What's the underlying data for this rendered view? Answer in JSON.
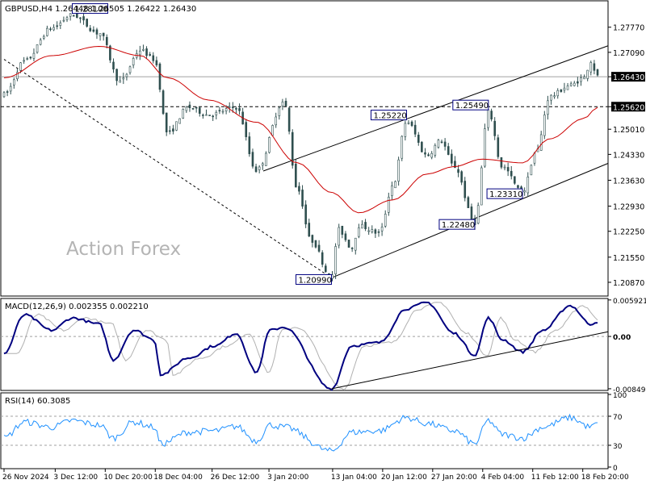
{
  "colors": {
    "background": "#ffffff",
    "frame": "#000000",
    "candle": "#2f4f4f",
    "sma": "#cc0000",
    "macd": "#000080",
    "signal": "#b0b0b0",
    "rsi": "#1e90ff",
    "level": "#a0a0a0",
    "watermark": "#b4b4b4"
  },
  "header": {
    "symbol_text": "GBPUSD,H4  1.26448  1.26505  1.26422  1.26430",
    "watermark": "Action Forex"
  },
  "chart_data": [
    {
      "type": "candlestick",
      "title": "GBPUSD,H4  1.26448  1.26505  1.26422  1.26430",
      "y_ticks": [
        "1.27770",
        "1.27090",
        "1.26430",
        "1.25620",
        "1.25010",
        "1.24330",
        "1.23630",
        "1.22930",
        "1.22250",
        "1.21550",
        "1.20870"
      ],
      "ylim": [
        1.2052,
        1.2844
      ],
      "x_ticks": [
        "26 Nov 2024",
        "3 Dec 12:00",
        "10 Dec 20:00",
        "18 Dec 04:00",
        "26 Dec 12:00",
        "3 Jan 20:00",
        "13 Jan 04:00",
        "20 Jan 12:00",
        "27 Jan 20:00",
        "4 Feb 04:00",
        "11 Feb 12:00",
        "18 Feb 20:00"
      ],
      "current_price": "1.26430",
      "horizontal_level": "1.25620",
      "annotations": [
        "1.28100",
        "1.20990",
        "1.25220",
        "1.25490",
        "1.22480",
        "1.23310"
      ],
      "swing_points": [
        {
          "date": "26 Nov 2024",
          "price": 1.2595
        },
        {
          "date": "29 Nov",
          "price": 1.2685
        },
        {
          "date": "3 Dec",
          "price": 1.2775
        },
        {
          "date": "6 Dec",
          "price": 1.281
        },
        {
          "date": "10 Dec",
          "price": 1.276
        },
        {
          "date": "13 Dec",
          "price": 1.263
        },
        {
          "date": "16 Dec",
          "price": 1.2715
        },
        {
          "date": "18 Dec",
          "price": 1.269
        },
        {
          "date": "20 Dec",
          "price": 1.249
        },
        {
          "date": "23 Dec",
          "price": 1.256
        },
        {
          "date": "26 Dec",
          "price": 1.254
        },
        {
          "date": "30 Dec",
          "price": 1.256
        },
        {
          "date": "2 Jan",
          "price": 1.239
        },
        {
          "date": "6 Jan",
          "price": 1.2575
        },
        {
          "date": "8 Jan",
          "price": 1.234
        },
        {
          "date": "10 Jan",
          "price": 1.22
        },
        {
          "date": "13 Jan",
          "price": 1.2099
        },
        {
          "date": "14 Jan",
          "price": 1.223
        },
        {
          "date": "16 Jan",
          "price": 1.218
        },
        {
          "date": "17 Jan",
          "price": 1.224
        },
        {
          "date": "20 Jan",
          "price": 1.222
        },
        {
          "date": "22 Jan",
          "price": 1.235
        },
        {
          "date": "24 Jan",
          "price": 1.2522
        },
        {
          "date": "27 Jan",
          "price": 1.243
        },
        {
          "date": "29 Jan",
          "price": 1.247
        },
        {
          "date": "31 Jan",
          "price": 1.24
        },
        {
          "date": "3 Feb",
          "price": 1.2248
        },
        {
          "date": "5 Feb",
          "price": 1.2549
        },
        {
          "date": "7 Feb",
          "price": 1.24
        },
        {
          "date": "10 Feb",
          "price": 1.2331
        },
        {
          "date": "12 Feb",
          "price": 1.244
        },
        {
          "date": "14 Feb",
          "price": 1.259
        },
        {
          "date": "17 Feb",
          "price": 1.262
        },
        {
          "date": "19 Feb",
          "price": 1.264
        },
        {
          "date": "20 Feb",
          "price": 1.2685
        },
        {
          "date": "21 Feb",
          "price": 1.2643
        }
      ],
      "sma_points": [
        {
          "date": "26 Nov 2024",
          "price": 1.264
        },
        {
          "date": "3 Dec",
          "price": 1.27
        },
        {
          "date": "10 Dec",
          "price": 1.2725
        },
        {
          "date": "16 Dec",
          "price": 1.27
        },
        {
          "date": "20 Dec",
          "price": 1.264
        },
        {
          "date": "26 Dec",
          "price": 1.258
        },
        {
          "date": "2 Jan",
          "price": 1.252
        },
        {
          "date": "8 Jan",
          "price": 1.241
        },
        {
          "date": "13 Jan",
          "price": 1.233
        },
        {
          "date": "17 Jan",
          "price": 1.2275
        },
        {
          "date": "22 Jan",
          "price": 1.231
        },
        {
          "date": "27 Jan",
          "price": 1.238
        },
        {
          "date": "31 Jan",
          "price": 1.24
        },
        {
          "date": "4 Feb",
          "price": 1.242
        },
        {
          "date": "10 Feb",
          "price": 1.241
        },
        {
          "date": "14 Feb",
          "price": 1.2475
        },
        {
          "date": "19 Feb",
          "price": 1.253
        },
        {
          "date": "21 Feb",
          "price": 1.256
        }
      ],
      "channel_upper": [
        {
          "date": "3 Jan",
          "price": 1.2388
        },
        {
          "date": "21 Feb",
          "price": 1.2718
        }
      ],
      "channel_lower": [
        {
          "date": "13 Jan",
          "price": 1.2099
        },
        {
          "date": "21 Feb",
          "price": 1.24
        }
      ],
      "dashed_trendline": [
        {
          "date": "26 Nov 2024",
          "price": 1.269
        },
        {
          "date": "13 Jan",
          "price": 1.2099
        }
      ]
    },
    {
      "type": "line",
      "title": "MACD(12,26,9) 0.002355 0.002210",
      "y_ticks": [
        "0.005921",
        "0.00",
        "-0.00849"
      ],
      "ylim": [
        -0.0085,
        0.0059
      ],
      "series": [
        {
          "name": "MACD",
          "points": [
            {
              "date": "26 Nov 2024",
              "value": -0.0028
            },
            {
              "date": "29 Nov",
              "value": 0.0035
            },
            {
              "date": "3 Dec",
              "value": 0.001
            },
            {
              "date": "6 Dec",
              "value": 0.003
            },
            {
              "date": "10 Dec",
              "value": 0.002
            },
            {
              "date": "12 Dec",
              "value": -0.0038
            },
            {
              "date": "15 Dec",
              "value": 0.001
            },
            {
              "date": "18 Dec",
              "value": -0.0005
            },
            {
              "date": "19 Dec",
              "value": -0.0062
            },
            {
              "date": "23 Dec",
              "value": -0.0035
            },
            {
              "date": "27 Dec",
              "value": -0.0015
            },
            {
              "date": "30 Dec",
              "value": 0.0005
            },
            {
              "date": "2 Jan",
              "value": -0.0058
            },
            {
              "date": "4 Jan",
              "value": 0.001
            },
            {
              "date": "6 Jan",
              "value": 0.0015
            },
            {
              "date": "13 Jan",
              "value": -0.0085
            },
            {
              "date": "16 Jan",
              "value": -0.0015
            },
            {
              "date": "20 Jan",
              "value": -0.001
            },
            {
              "date": "24 Jan",
              "value": 0.0045
            },
            {
              "date": "27 Jan",
              "value": 0.0055
            },
            {
              "date": "31 Jan",
              "value": 0.0005
            },
            {
              "date": "3 Feb",
              "value": -0.003
            },
            {
              "date": "5 Feb",
              "value": 0.003
            },
            {
              "date": "7 Feb",
              "value": -0.0005
            },
            {
              "date": "10 Feb",
              "value": -0.0025
            },
            {
              "date": "13 Feb",
              "value": 0.001
            },
            {
              "date": "17 Feb",
              "value": 0.005
            },
            {
              "date": "20 Feb",
              "value": 0.002
            },
            {
              "date": "21 Feb",
              "value": 0.0024
            }
          ]
        },
        {
          "name": "Signal",
          "lagged_of": "MACD"
        }
      ],
      "trendline": [
        {
          "date": "13 Jan",
          "value": -0.0085
        },
        {
          "date": "21 Feb",
          "value": 0.0005
        }
      ]
    },
    {
      "type": "line",
      "title": "RSI(14) 60.3085",
      "y_ticks": [
        "100",
        "70",
        "30",
        "0"
      ],
      "ylim": [
        0,
        100
      ],
      "levels": [
        70,
        30
      ],
      "series": [
        {
          "name": "RSI",
          "points": [
            {
              "date": "26 Nov 2024",
              "value": 40
            },
            {
              "date": "29 Nov",
              "value": 62
            },
            {
              "date": "3 Dec",
              "value": 55
            },
            {
              "date": "6 Dec",
              "value": 64
            },
            {
              "date": "10 Dec",
              "value": 58
            },
            {
              "date": "12 Dec",
              "value": 40
            },
            {
              "date": "15 Dec",
              "value": 62
            },
            {
              "date": "18 Dec",
              "value": 55
            },
            {
              "date": "19 Dec",
              "value": 32
            },
            {
              "date": "23 Dec",
              "value": 48
            },
            {
              "date": "27 Dec",
              "value": 50
            },
            {
              "date": "30 Dec",
              "value": 56
            },
            {
              "date": "2 Jan",
              "value": 36
            },
            {
              "date": "4 Jan",
              "value": 58
            },
            {
              "date": "6 Jan",
              "value": 55
            },
            {
              "date": "13 Jan",
              "value": 22
            },
            {
              "date": "16 Jan",
              "value": 48
            },
            {
              "date": "20 Jan",
              "value": 50
            },
            {
              "date": "24 Jan",
              "value": 68
            },
            {
              "date": "27 Jan",
              "value": 60
            },
            {
              "date": "31 Jan",
              "value": 50
            },
            {
              "date": "3 Feb",
              "value": 32
            },
            {
              "date": "5 Feb",
              "value": 64
            },
            {
              "date": "7 Feb",
              "value": 45
            },
            {
              "date": "10 Feb",
              "value": 40
            },
            {
              "date": "13 Feb",
              "value": 55
            },
            {
              "date": "17 Feb",
              "value": 68
            },
            {
              "date": "20 Feb",
              "value": 55
            },
            {
              "date": "21 Feb",
              "value": 60.3085
            }
          ]
        }
      ]
    }
  ]
}
